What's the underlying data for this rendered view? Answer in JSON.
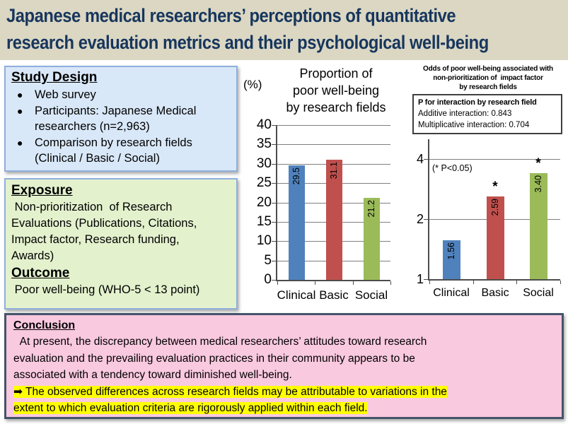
{
  "slide_title": {
    "lines": [
      "Japanese medical researchers’ perceptions of quantitative",
      "research evaluation metrics and their psychological well-being"
    ]
  },
  "study_design": {
    "heading": "Study Design",
    "bullet_char": "●",
    "bullets": [
      "Web survey",
      "Participants: Japanese Medical\nresearchers (n=2,963)",
      "Comparison by research fields\n(Clinical / Basic / Social)"
    ]
  },
  "exposure": {
    "heading": "Exposure",
    "body_lines": [
      " Non-prioritization  of Research",
      "Evaluations (Publications, Citations,",
      "Impact factor, Research funding,",
      "Awards)"
    ],
    "outcome_heading": "Outcome",
    "outcome_body": " Poor well-being (WHO-5 < 13 point)"
  },
  "conclusion": {
    "heading": "Conclusion",
    "body_lines": [
      "  At present, the discrepancy between medical researchers’ attitudes toward research",
      "evaluation and the prevailing evaluation practices in their community appears to be",
      "associated with a tendency toward diminished well-being."
    ],
    "highlight_lines": [
      "➡ The observed differences across research fields may be attributable to variations in the",
      "extent to which evaluation criteria are rigorously applied within each field."
    ],
    "highlight_color": "#FFFF00"
  },
  "chart_data": [
    {
      "type": "bar",
      "title": "Proportion of poor well-being by research fields",
      "title_lines": [
        "Proportion of",
        "poor well-being",
        "by research fields"
      ],
      "unit_label": "(%)",
      "categories": [
        "Clinical",
        "Basic",
        "Social"
      ],
      "values": [
        29.5,
        31.1,
        21.2
      ],
      "value_labels": [
        "29.5",
        "31.1",
        "21.2"
      ],
      "bar_colors": [
        "#4F81BD",
        "#C0504D",
        "#9BBB59"
      ],
      "scale": "linear",
      "ylim": [
        0,
        40
      ],
      "yticks": [
        0,
        5,
        10,
        15,
        20,
        25,
        30,
        35,
        40
      ],
      "grid": true,
      "legend": "none"
    },
    {
      "type": "bar",
      "title": "Odds of poor well-being associated with non-prioritization of impact factor by research fields",
      "title_lines": [
        "Odds of poor well-being associated with",
        "non-prioritization of  impact factor",
        "by research fields"
      ],
      "p_interaction_box": {
        "heading": "P for interaction by research field",
        "lines": [
          "Additive interaction: 0.843",
          "Multiplicative interaction: 0.704"
        ]
      },
      "annotation": "(* P<0.05)",
      "categories": [
        "Clinical",
        "Basic",
        "Social"
      ],
      "values": [
        1.56,
        2.59,
        3.4
      ],
      "value_labels": [
        "1.56",
        "2.59",
        "3.40"
      ],
      "significant": [
        false,
        true,
        true
      ],
      "significance_marker": "*",
      "bar_colors": [
        "#4F81BD",
        "#C0504D",
        "#9BBB59"
      ],
      "scale": "log2",
      "ylim": [
        1,
        4.7
      ],
      "yticks": [
        1,
        2,
        4
      ],
      "grid": true,
      "legend": "none"
    }
  ]
}
